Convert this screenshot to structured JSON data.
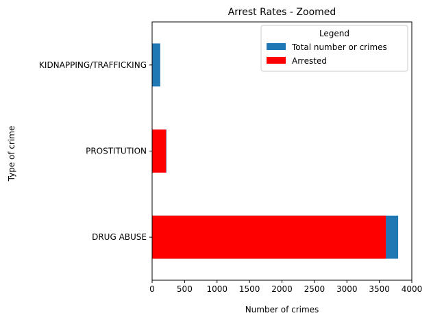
{
  "chart_data": {
    "type": "bar",
    "orientation": "horizontal",
    "title": "Arrest Rates - Zoomed",
    "xlabel": "Number of crimes",
    "ylabel": "Type of crime",
    "categories": [
      "DRUG ABUSE",
      "PROSTITUTION",
      "KIDNAPPING/TRAFFICKING"
    ],
    "series": [
      {
        "name": "Total number or crimes",
        "values": [
          3790,
          220,
          125
        ],
        "color": "#1f77b4"
      },
      {
        "name": "Arrested",
        "values": [
          3600,
          215,
          0
        ],
        "color": "#ff0000"
      }
    ],
    "xlim": [
      0,
      4000
    ],
    "xticks": [
      0,
      500,
      1000,
      1500,
      2000,
      2500,
      3000,
      3500,
      4000
    ],
    "grid": false,
    "legend": {
      "title": "Legend",
      "placement": "upper-right"
    }
  }
}
